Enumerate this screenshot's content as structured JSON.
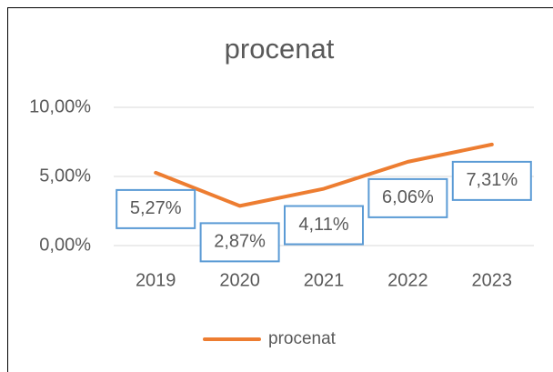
{
  "chart_data": {
    "type": "line",
    "title": "procenat",
    "categories": [
      "2019",
      "2020",
      "2021",
      "2022",
      "2023"
    ],
    "series": [
      {
        "name": "procenat",
        "color": "#ed7d31",
        "values": [
          5.27,
          2.87,
          4.11,
          6.06,
          7.31
        ],
        "value_labels": [
          "5,27%",
          "2,87%",
          "4,11%",
          "6,06%",
          "7,31%"
        ]
      }
    ],
    "ylim": [
      0,
      10
    ],
    "yticks": [
      {
        "value": 0,
        "label": "0,00%"
      },
      {
        "value": 5,
        "label": "5,00%"
      },
      {
        "value": 10,
        "label": "10,00%"
      }
    ],
    "grid": true,
    "legend": "bottom"
  }
}
